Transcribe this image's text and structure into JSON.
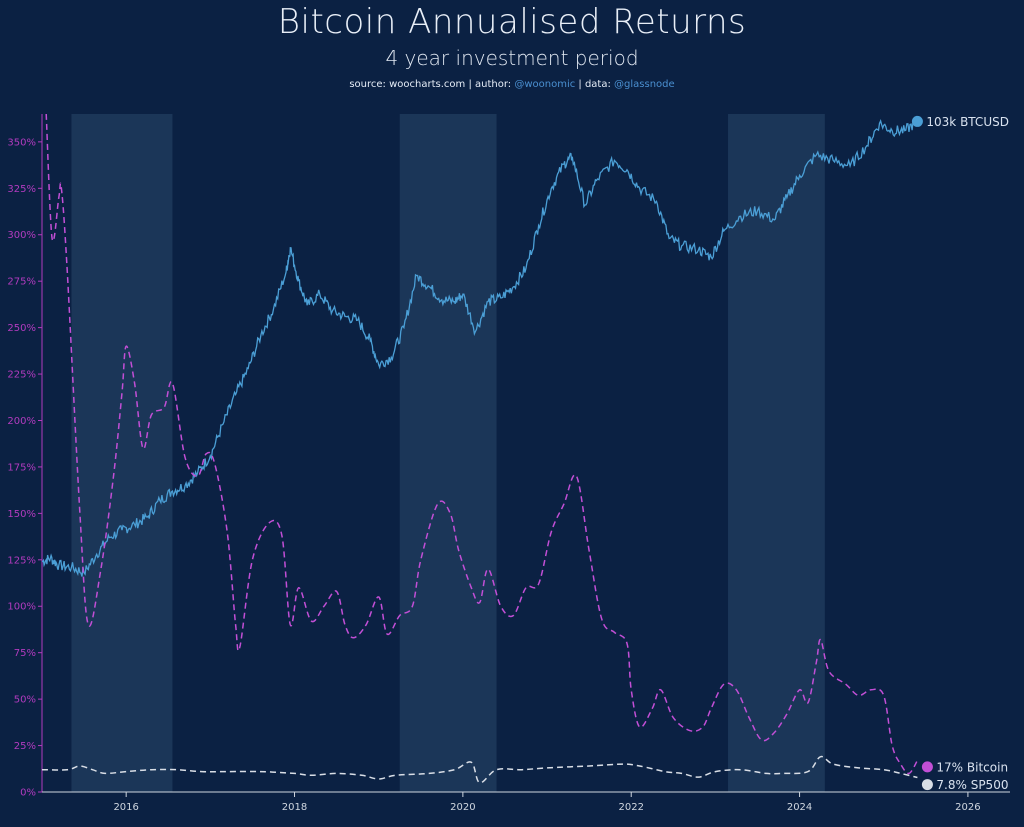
{
  "header": {
    "title": "Bitcoin Annualised Returns",
    "subtitle": "4 year investment period",
    "source_prefix": "source: ",
    "source_site": "woocharts.com",
    "author_prefix": " | author: ",
    "author": "@woonomic",
    "data_prefix": " | data: ",
    "data_source": "@glassnode"
  },
  "colors": {
    "background": "#0b2143",
    "btc_price": "#4b9fd6",
    "btc_return": "#c24fd6",
    "sp500_return": "#d9dee6",
    "band": "#1f3a5c",
    "y_axis": "#b23bbf",
    "x_axis": "#cfd6df"
  },
  "chart_data": {
    "type": "line",
    "title": "Bitcoin Annualised Returns",
    "subtitle": "4 year investment period",
    "x_range": [
      2015.0,
      2026.5
    ],
    "y_range": [
      0,
      365
    ],
    "y_unit": "%",
    "y_ticks": [
      0,
      25,
      50,
      75,
      100,
      125,
      150,
      175,
      200,
      225,
      250,
      275,
      300,
      325,
      350
    ],
    "y_tick_labels": [
      "0%",
      "25%",
      "50%",
      "75%",
      "100%",
      "125%",
      "150%",
      "175%",
      "200%",
      "225%",
      "250%",
      "275%",
      "300%",
      "325%",
      "350%"
    ],
    "x_ticks": [
      2016,
      2018,
      2020,
      2022,
      2024,
      2026
    ],
    "x_tick_labels": [
      "2016",
      "2018",
      "2020",
      "2022",
      "2024",
      "2026"
    ],
    "shaded_periods": [
      [
        2015.35,
        2016.55
      ],
      [
        2019.25,
        2020.4
      ],
      [
        2023.15,
        2024.3
      ]
    ],
    "grid": false,
    "legend": "right",
    "series": [
      {
        "name": "BTCUSD",
        "end_label": "103k BTCUSD",
        "style": "solid",
        "scale": "log (right, unlabeled)",
        "points": [
          [
            2015.0,
            124
          ],
          [
            2015.1,
            126
          ],
          [
            2015.2,
            122
          ],
          [
            2015.35,
            121
          ],
          [
            2015.5,
            118
          ],
          [
            2015.65,
            128
          ],
          [
            2015.8,
            137
          ],
          [
            2015.95,
            141
          ],
          [
            2016.1,
            144
          ],
          [
            2016.25,
            148
          ],
          [
            2016.4,
            157
          ],
          [
            2016.55,
            162
          ],
          [
            2016.7,
            165
          ],
          [
            2016.85,
            172
          ],
          [
            2017.0,
            181
          ],
          [
            2017.15,
            198
          ],
          [
            2017.3,
            214
          ],
          [
            2017.45,
            228
          ],
          [
            2017.6,
            246
          ],
          [
            2017.75,
            260
          ],
          [
            2017.9,
            280
          ],
          [
            2017.95,
            293
          ],
          [
            2018.05,
            275
          ],
          [
            2018.15,
            262
          ],
          [
            2018.3,
            268
          ],
          [
            2018.45,
            259
          ],
          [
            2018.6,
            256
          ],
          [
            2018.75,
            254
          ],
          [
            2018.9,
            243
          ],
          [
            2019.0,
            230
          ],
          [
            2019.15,
            234
          ],
          [
            2019.3,
            250
          ],
          [
            2019.45,
            278
          ],
          [
            2019.6,
            272
          ],
          [
            2019.75,
            265
          ],
          [
            2019.9,
            264
          ],
          [
            2020.0,
            268
          ],
          [
            2020.15,
            248
          ],
          [
            2020.3,
            264
          ],
          [
            2020.45,
            266
          ],
          [
            2020.6,
            272
          ],
          [
            2020.75,
            282
          ],
          [
            2020.9,
            305
          ],
          [
            2021.05,
            325
          ],
          [
            2021.2,
            338
          ],
          [
            2021.3,
            342
          ],
          [
            2021.45,
            316
          ],
          [
            2021.6,
            330
          ],
          [
            2021.8,
            340
          ],
          [
            2021.95,
            335
          ],
          [
            2022.1,
            325
          ],
          [
            2022.3,
            318
          ],
          [
            2022.45,
            298
          ],
          [
            2022.6,
            294
          ],
          [
            2022.8,
            292
          ],
          [
            2022.95,
            288
          ],
          [
            2023.1,
            302
          ],
          [
            2023.3,
            310
          ],
          [
            2023.5,
            313
          ],
          [
            2023.7,
            308
          ],
          [
            2023.85,
            320
          ],
          [
            2024.0,
            332
          ],
          [
            2024.2,
            343
          ],
          [
            2024.4,
            340
          ],
          [
            2024.6,
            337
          ],
          [
            2024.8,
            348
          ],
          [
            2024.95,
            360
          ],
          [
            2025.1,
            356
          ],
          [
            2025.25,
            356
          ],
          [
            2025.4,
            361
          ]
        ]
      },
      {
        "name": "Bitcoin",
        "end_label": "17% Bitcoin",
        "style": "dashed",
        "points": [
          [
            2015.05,
            365
          ],
          [
            2015.12,
            298
          ],
          [
            2015.2,
            320
          ],
          [
            2015.23,
            325
          ],
          [
            2015.3,
            280
          ],
          [
            2015.45,
            150
          ],
          [
            2015.55,
            90
          ],
          [
            2015.7,
            120
          ],
          [
            2015.85,
            170
          ],
          [
            2015.95,
            215
          ],
          [
            2016.0,
            240
          ],
          [
            2016.1,
            220
          ],
          [
            2016.2,
            185
          ],
          [
            2016.3,
            203
          ],
          [
            2016.45,
            207
          ],
          [
            2016.55,
            220
          ],
          [
            2016.7,
            180
          ],
          [
            2016.85,
            170
          ],
          [
            2016.95,
            182
          ],
          [
            2017.05,
            177
          ],
          [
            2017.2,
            140
          ],
          [
            2017.3,
            90
          ],
          [
            2017.35,
            78
          ],
          [
            2017.5,
            125
          ],
          [
            2017.7,
            145
          ],
          [
            2017.85,
            138
          ],
          [
            2017.95,
            90
          ],
          [
            2018.05,
            110
          ],
          [
            2018.2,
            92
          ],
          [
            2018.35,
            100
          ],
          [
            2018.5,
            108
          ],
          [
            2018.6,
            90
          ],
          [
            2018.7,
            83
          ],
          [
            2018.85,
            90
          ],
          [
            2019.0,
            105
          ],
          [
            2019.1,
            85
          ],
          [
            2019.25,
            95
          ],
          [
            2019.4,
            100
          ],
          [
            2019.5,
            125
          ],
          [
            2019.7,
            155
          ],
          [
            2019.85,
            150
          ],
          [
            2019.95,
            130
          ],
          [
            2020.1,
            110
          ],
          [
            2020.2,
            102
          ],
          [
            2020.3,
            120
          ],
          [
            2020.45,
            100
          ],
          [
            2020.6,
            95
          ],
          [
            2020.75,
            110
          ],
          [
            2020.9,
            112
          ],
          [
            2021.05,
            140
          ],
          [
            2021.2,
            155
          ],
          [
            2021.35,
            170
          ],
          [
            2021.5,
            130
          ],
          [
            2021.65,
            93
          ],
          [
            2021.8,
            86
          ],
          [
            2021.95,
            80
          ],
          [
            2022.0,
            55
          ],
          [
            2022.1,
            35
          ],
          [
            2022.25,
            45
          ],
          [
            2022.35,
            55
          ],
          [
            2022.5,
            40
          ],
          [
            2022.7,
            33
          ],
          [
            2022.85,
            35
          ],
          [
            2022.95,
            45
          ],
          [
            2023.1,
            58
          ],
          [
            2023.25,
            55
          ],
          [
            2023.4,
            40
          ],
          [
            2023.55,
            28
          ],
          [
            2023.7,
            32
          ],
          [
            2023.85,
            42
          ],
          [
            2024.0,
            55
          ],
          [
            2024.1,
            48
          ],
          [
            2024.2,
            70
          ],
          [
            2024.25,
            82
          ],
          [
            2024.35,
            65
          ],
          [
            2024.55,
            58
          ],
          [
            2024.7,
            52
          ],
          [
            2024.85,
            55
          ],
          [
            2025.0,
            52
          ],
          [
            2025.1,
            25
          ],
          [
            2025.2,
            15
          ],
          [
            2025.3,
            10
          ],
          [
            2025.4,
            17
          ]
        ]
      },
      {
        "name": "SP500",
        "end_label": "7.8% SP500",
        "style": "dashed",
        "points": [
          [
            2015.0,
            12
          ],
          [
            2015.3,
            12
          ],
          [
            2015.45,
            14
          ],
          [
            2015.6,
            12
          ],
          [
            2015.75,
            10
          ],
          [
            2016.0,
            11
          ],
          [
            2016.3,
            12
          ],
          [
            2016.6,
            12
          ],
          [
            2016.9,
            11
          ],
          [
            2017.2,
            11
          ],
          [
            2017.6,
            11
          ],
          [
            2018.0,
            10
          ],
          [
            2018.2,
            9
          ],
          [
            2018.5,
            10
          ],
          [
            2018.8,
            9
          ],
          [
            2019.0,
            7
          ],
          [
            2019.2,
            9
          ],
          [
            2019.6,
            10
          ],
          [
            2019.9,
            12
          ],
          [
            2020.1,
            16
          ],
          [
            2020.2,
            5
          ],
          [
            2020.4,
            12
          ],
          [
            2020.7,
            12
          ],
          [
            2021.0,
            13
          ],
          [
            2021.5,
            14
          ],
          [
            2021.9,
            15
          ],
          [
            2022.1,
            14
          ],
          [
            2022.4,
            11
          ],
          [
            2022.6,
            10
          ],
          [
            2022.8,
            8
          ],
          [
            2023.0,
            11
          ],
          [
            2023.3,
            12
          ],
          [
            2023.6,
            10
          ],
          [
            2023.8,
            10
          ],
          [
            2024.1,
            11
          ],
          [
            2024.25,
            19
          ],
          [
            2024.4,
            15
          ],
          [
            2024.7,
            13
          ],
          [
            2025.0,
            12
          ],
          [
            2025.2,
            10
          ],
          [
            2025.4,
            7.8
          ]
        ]
      }
    ]
  }
}
